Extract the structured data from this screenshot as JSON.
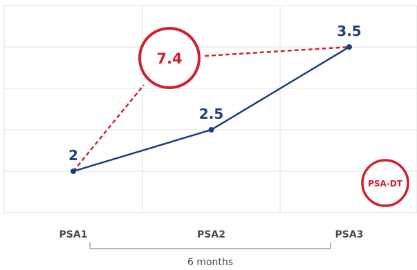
{
  "chart_data": {
    "type": "line",
    "categories": [
      "PSA1",
      "PSA2",
      "PSA3"
    ],
    "series": [
      {
        "values": [
          2,
          2.5,
          3.5
        ],
        "labels": [
          "2",
          "2.5",
          "3.5"
        ],
        "color": "#1f3f7a",
        "style": "solid"
      }
    ],
    "annotation": {
      "value_label": "7.4",
      "connects": [
        "PSA1",
        "PSA3"
      ],
      "color": "#d0202f",
      "style": "dashed-lines-with-circled-value"
    },
    "badge": {
      "text": "PSA-DT",
      "color": "#d0202f"
    },
    "interval": {
      "from": "PSA1",
      "to": "PSA3",
      "label": "6 months"
    },
    "ylim": [
      1,
      4
    ],
    "grid": true,
    "title": "",
    "xlabel": "",
    "ylabel": ""
  }
}
